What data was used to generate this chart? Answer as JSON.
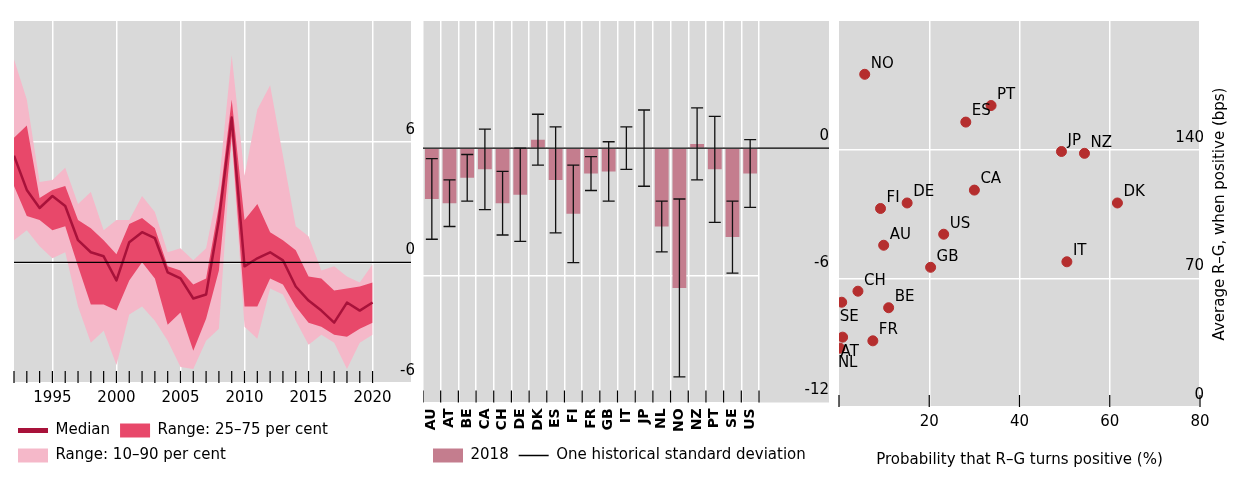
{
  "chart_data": [
    {
      "type": "line",
      "x": [
        1992,
        1993,
        1994,
        1995,
        1996,
        1997,
        1998,
        1999,
        2000,
        2001,
        2002,
        2003,
        2004,
        2005,
        2006,
        2007,
        2008,
        2009,
        2010,
        2011,
        2012,
        2013,
        2014,
        2015,
        2016,
        2017,
        2018,
        2019,
        2020
      ],
      "xlim": [
        1992,
        2023
      ],
      "xticks": [
        {
          "value": 1992,
          "label": null
        },
        {
          "value": 1993,
          "label": null
        },
        {
          "value": 1994,
          "label": null
        },
        1995,
        {
          "value": 1996,
          "label": null
        },
        {
          "value": 1997,
          "label": null
        },
        {
          "value": 1998,
          "label": null
        },
        {
          "value": 1999,
          "label": null
        },
        2000,
        {
          "value": 2001,
          "label": null
        },
        {
          "value": 2002,
          "label": null
        },
        {
          "value": 2003,
          "label": null
        },
        {
          "value": 2004,
          "label": null
        },
        2005,
        {
          "value": 2006,
          "label": null
        },
        {
          "value": 2007,
          "label": null
        },
        {
          "value": 2008,
          "label": null
        },
        {
          "value": 2009,
          "label": null
        },
        2010,
        {
          "value": 2011,
          "label": null
        },
        {
          "value": 2012,
          "label": null
        },
        {
          "value": 2013,
          "label": null
        },
        {
          "value": 2014,
          "label": null
        },
        2015,
        {
          "value": 2016,
          "label": null
        },
        {
          "value": 2017,
          "label": null
        },
        {
          "value": 2018,
          "label": null
        },
        {
          "value": 2019,
          "label": null
        },
        2020
      ],
      "ylim": [
        -6,
        12
      ],
      "yticks": [
        -6,
        0,
        6
      ],
      "grid": true,
      "legend": "bottom left",
      "ref_lines": [
        {
          "axis": "y",
          "value": 0,
          "color": "#000000"
        }
      ],
      "series": [
        {
          "name": "Median",
          "type": "line",
          "color": "#a8123a",
          "values": [
            5.3,
            3.6,
            2.7,
            3.3,
            2.8,
            1.1,
            0.5,
            0.3,
            -0.9,
            1.0,
            1.5,
            1.2,
            -0.5,
            -0.8,
            -1.8,
            -1.6,
            2.1,
            7.2,
            -0.2,
            0.2,
            0.5,
            0.1,
            -1.2,
            -1.9,
            -2.4,
            -3.0,
            -2.0,
            -2.4,
            -2.0
          ]
        },
        {
          "name": "Range: 25–75 per cent",
          "type": "area",
          "color": "#e8486a",
          "values": [
            null,
            null,
            null,
            null,
            null,
            null,
            null,
            null,
            null,
            null,
            null,
            null,
            null,
            null,
            null,
            null,
            null,
            null,
            null,
            null,
            null,
            null,
            null,
            null,
            null,
            null,
            null,
            null,
            null
          ],
          "upper": [
            6.2,
            6.8,
            3.2,
            3.6,
            3.8,
            2.1,
            1.7,
            1.1,
            0.4,
            1.9,
            2.2,
            1.7,
            -0.2,
            -0.4,
            -1.1,
            -0.8,
            2.8,
            8.1,
            2.1,
            2.9,
            1.5,
            1.1,
            0.6,
            -0.7,
            -0.8,
            -1.4,
            -1.3,
            -1.2,
            -1.0
          ],
          "lower": [
            3.8,
            2.3,
            2.1,
            1.6,
            1.8,
            -0.2,
            -2.1,
            -2.1,
            -2.4,
            -0.9,
            0.0,
            -0.8,
            -3.1,
            -2.5,
            -4.4,
            -2.8,
            -0.4,
            6.3,
            -2.2,
            -2.2,
            -0.8,
            -1.1,
            -2.2,
            -3.0,
            -3.2,
            -3.6,
            -3.7,
            -3.3,
            -3.0
          ]
        },
        {
          "name": "Range: 10–90 per cent",
          "type": "area",
          "color": "#f5b8c9",
          "values": [
            null,
            null,
            null,
            null,
            null,
            null,
            null,
            null,
            null,
            null,
            null,
            null,
            null,
            null,
            null,
            null,
            null,
            null,
            null,
            null,
            null,
            null,
            null,
            null,
            null,
            null,
            null,
            null,
            null
          ],
          "upper": [
            10.1,
            8.1,
            4.0,
            4.1,
            4.7,
            2.9,
            3.5,
            1.6,
            2.1,
            2.1,
            3.3,
            2.5,
            0.5,
            0.7,
            0.1,
            0.7,
            3.9,
            10.3,
            4.3,
            7.6,
            8.8,
            5.3,
            1.8,
            1.3,
            -0.4,
            -0.2,
            -0.7,
            -1.0,
            -0.1
          ],
          "lower": [
            1.1,
            1.6,
            0.8,
            0.2,
            0.5,
            -2.2,
            -4.0,
            -3.4,
            -5.1,
            -2.6,
            -2.2,
            -2.9,
            -3.9,
            -5.2,
            -5.3,
            -3.9,
            -3.3,
            6.0,
            -3.2,
            -3.8,
            -1.3,
            -1.6,
            -2.9,
            -4.1,
            -3.6,
            -4.0,
            -5.3,
            -4.0,
            -3.6
          ]
        }
      ]
    },
    {
      "type": "bar",
      "categories": [
        "AU",
        "AT",
        "BE",
        "CA",
        "CH",
        "DE",
        "DK",
        "ES",
        "FI",
        "FR",
        "GB",
        "IT",
        "JP",
        "NL",
        "NO",
        "NZ",
        "PT",
        "SE",
        "US"
      ],
      "ylim": [
        -12,
        6
      ],
      "yticks": [
        -12,
        -6,
        0
      ],
      "grid": true,
      "legend": "bottom left",
      "ref_lines": [
        {
          "axis": "y",
          "value": 0,
          "color": "#000000"
        }
      ],
      "annotations": [
        "One historical standard deviation"
      ],
      "series": [
        {
          "name": "2018",
          "color": "#c47d8e",
          "values": [
            -2.4,
            -2.6,
            -1.4,
            -1.0,
            -2.6,
            -2.2,
            0.4,
            -1.5,
            -3.1,
            -1.2,
            -1.1,
            0,
            0,
            -3.7,
            -6.6,
            0.2,
            -1.0,
            -4.2,
            -1.2
          ],
          "errors": [
            1.9,
            1.1,
            1.1,
            1.9,
            1.5,
            2.2,
            1.2,
            2.5,
            2.3,
            0.8,
            1.4,
            1.0,
            1.8,
            1.2,
            4.2,
            1.7,
            2.5,
            1.7,
            1.6
          ]
        }
      ]
    },
    {
      "type": "scatter",
      "xlabel": "Probability that R–G turns positive (%)",
      "ylabel": "Average R–G, when positive (bps)",
      "color": "#b52e2e",
      "marker": "circle",
      "grid": true,
      "xlim": [
        0,
        80
      ],
      "xticks": [
        {
          "value": 0,
          "label": null
        },
        20,
        40,
        60,
        80
      ],
      "ylim": [
        0,
        210
      ],
      "yticks": [
        0,
        70,
        140
      ],
      "x": [
        5.7,
        33.7,
        28.1,
        49.3,
        54.4,
        30.0,
        61.7,
        15.1,
        9.2,
        23.2,
        9.9,
        20.3,
        50.5,
        4.2,
        0.6,
        11.0,
        0.8,
        7.5,
        0.2
      ],
      "values": [
        181,
        164,
        155,
        139,
        138,
        118,
        111,
        111,
        108,
        94,
        88,
        76,
        79,
        63,
        57,
        54,
        38,
        36,
        32
      ],
      "value_labels": [
        "NO",
        "PT",
        "ES",
        "JP",
        "NZ",
        "CA",
        "DK",
        "DE",
        "FI",
        "US",
        "AU",
        "GB",
        "IT",
        "CH",
        "SE",
        "BE",
        "AT",
        "FR",
        "NL"
      ]
    }
  ]
}
